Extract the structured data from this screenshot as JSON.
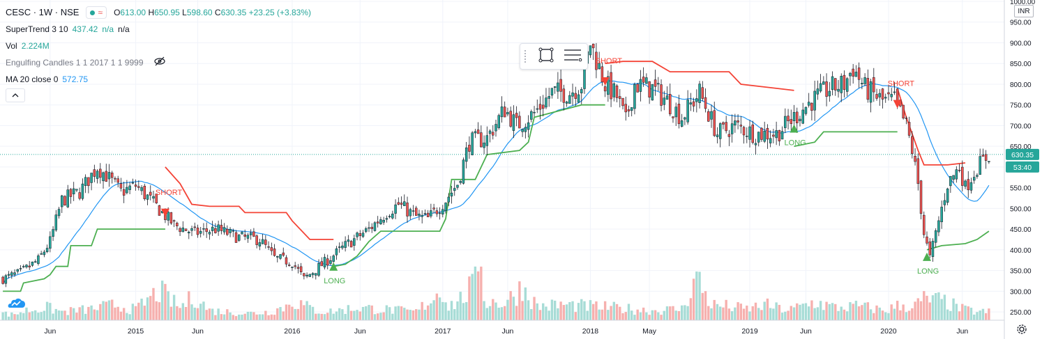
{
  "header": {
    "symbol": "CESC · 1W · NSE",
    "ohlc": {
      "open_label": "O",
      "open": "613.00",
      "high_label": "H",
      "high": "650.95",
      "low_label": "L",
      "low": "598.60",
      "close_label": "C",
      "close": "630.35",
      "change": "+23.25 (+3.83%)"
    }
  },
  "indicators": {
    "supertrend": {
      "label": "SuperTrend 3 10",
      "value": "437.42",
      "extra": "n/a",
      "extra2": "n/a"
    },
    "volume": {
      "label": "Vol",
      "value": "2.224M"
    },
    "engulfing": {
      "label": "Engulfing Candles 1 1 2017 1 1 9999",
      "icon": "eye-off-icon"
    },
    "ma": {
      "label": "MA 20 close 0",
      "value": "572.75"
    }
  },
  "toolbar": {
    "currency": "INR",
    "collapse_icon": "chevron-up-icon",
    "tools": [
      "rectangle-tool-icon",
      "settings-lines-icon"
    ]
  },
  "colors": {
    "up": "#26a69a",
    "down": "#ef5350",
    "ma": "#2196f3",
    "st_long": "#4caf50",
    "st_short": "#f44336",
    "last_price_bg": "#26a69a"
  },
  "chart_data": {
    "type": "candlestick",
    "title": "CESC · 1W · NSE",
    "ylim": [
      230,
      1000
    ],
    "y_ticks": [
      "1000.00",
      "950.00",
      "900.00",
      "850.00",
      "800.00",
      "750.00",
      "700.00",
      "650.00",
      "600.00",
      "550.00",
      "500.00",
      "450.00",
      "400.00",
      "350.00",
      "300.00",
      "250.00"
    ],
    "y_tick_values": [
      1000,
      950,
      900,
      850,
      800,
      750,
      700,
      650,
      600,
      550,
      500,
      450,
      400,
      350,
      300,
      250
    ],
    "x_ticks": [
      "Jun",
      "2015",
      "Jun",
      "2016",
      "Jun",
      "2017",
      "Jun",
      "2018",
      "May",
      "2019",
      "Jun",
      "2020",
      "Jun"
    ],
    "x_tick_weeks": [
      16,
      45,
      66,
      98,
      121,
      149,
      171,
      199,
      219,
      253,
      272,
      300,
      325
    ],
    "total_weeks": 335,
    "last_price_label": "630.35",
    "countdown_label": "53:40",
    "anchors": [
      [
        0,
        330
      ],
      [
        6,
        345
      ],
      [
        12,
        375
      ],
      [
        16,
        420
      ],
      [
        20,
        520
      ],
      [
        26,
        540
      ],
      [
        32,
        600
      ],
      [
        35,
        580
      ],
      [
        40,
        540
      ],
      [
        45,
        555
      ],
      [
        50,
        520
      ],
      [
        54,
        490
      ],
      [
        58,
        460
      ],
      [
        65,
        440
      ],
      [
        72,
        450
      ],
      [
        80,
        430
      ],
      [
        87,
        425
      ],
      [
        92,
        380
      ],
      [
        98,
        370
      ],
      [
        102,
        330
      ],
      [
        110,
        375
      ],
      [
        116,
        410
      ],
      [
        124,
        450
      ],
      [
        130,
        490
      ],
      [
        134,
        510
      ],
      [
        140,
        480
      ],
      [
        144,
        475
      ],
      [
        150,
        520
      ],
      [
        154,
        560
      ],
      [
        158,
        660
      ],
      [
        164,
        670
      ],
      [
        170,
        740
      ],
      [
        174,
        700
      ],
      [
        180,
        730
      ],
      [
        186,
        780
      ],
      [
        192,
        780
      ],
      [
        196,
        800
      ],
      [
        199,
        900
      ],
      [
        204,
        800
      ],
      [
        208,
        770
      ],
      [
        211,
        710
      ],
      [
        214,
        800
      ],
      [
        220,
        790
      ],
      [
        225,
        760
      ],
      [
        230,
        720
      ],
      [
        236,
        780
      ],
      [
        242,
        680
      ],
      [
        248,
        700
      ],
      [
        255,
        680
      ],
      [
        262,
        680
      ],
      [
        268,
        720
      ],
      [
        274,
        760
      ],
      [
        280,
        790
      ],
      [
        285,
        800
      ],
      [
        288,
        840
      ],
      [
        292,
        790
      ],
      [
        298,
        760
      ],
      [
        302,
        760
      ],
      [
        306,
        700
      ],
      [
        308,
        640
      ],
      [
        310,
        560
      ],
      [
        312,
        440
      ],
      [
        314,
        380
      ],
      [
        317,
        470
      ],
      [
        320,
        560
      ],
      [
        324,
        600
      ],
      [
        326,
        550
      ],
      [
        330,
        600
      ],
      [
        334,
        630
      ]
    ],
    "volume_weeks": [
      [
        0,
        10
      ],
      [
        3,
        8
      ],
      [
        8,
        14
      ],
      [
        15,
        18
      ],
      [
        20,
        12
      ],
      [
        30,
        16
      ],
      [
        38,
        22
      ],
      [
        45,
        15
      ],
      [
        53,
        42
      ],
      [
        60,
        18
      ],
      [
        65,
        35
      ],
      [
        70,
        14
      ],
      [
        76,
        12
      ],
      [
        84,
        10
      ],
      [
        90,
        12
      ],
      [
        96,
        20
      ],
      [
        98,
        28
      ],
      [
        106,
        14
      ],
      [
        110,
        12
      ],
      [
        120,
        18
      ],
      [
        131,
        15
      ],
      [
        140,
        12
      ],
      [
        149,
        45
      ],
      [
        151,
        20
      ],
      [
        155,
        30
      ],
      [
        160,
        52
      ],
      [
        162,
        116
      ],
      [
        163,
        28
      ],
      [
        170,
        24
      ],
      [
        176,
        48
      ],
      [
        181,
        20
      ],
      [
        190,
        22
      ],
      [
        198,
        20
      ],
      [
        206,
        18
      ],
      [
        220,
        14
      ],
      [
        230,
        16
      ],
      [
        235,
        62
      ],
      [
        240,
        22
      ],
      [
        245,
        20
      ],
      [
        252,
        16
      ],
      [
        258,
        22
      ],
      [
        266,
        14
      ],
      [
        275,
        26
      ],
      [
        282,
        18
      ],
      [
        290,
        20
      ],
      [
        299,
        14
      ],
      [
        304,
        22
      ],
      [
        308,
        18
      ],
      [
        312,
        30
      ],
      [
        318,
        28
      ],
      [
        325,
        16
      ],
      [
        330,
        12
      ]
    ],
    "short_signals": [
      {
        "week": 55,
        "label": "SHORT"
      },
      {
        "week": 204,
        "label": "SHORT"
      },
      {
        "week": 303,
        "label": "SHORT"
      }
    ],
    "long_signals": [
      {
        "week": 112,
        "label": "LONG"
      },
      {
        "week": 268,
        "label": "LONG"
      },
      {
        "week": 313,
        "label": "LONG"
      }
    ],
    "supertrend_segments": [
      {
        "dir": "long",
        "points": [
          [
            0,
            300
          ],
          [
            6,
            300
          ],
          [
            7,
            320
          ],
          [
            14,
            330
          ],
          [
            16,
            340
          ],
          [
            18,
            360
          ],
          [
            22,
            360
          ],
          [
            23,
            410
          ],
          [
            30,
            410
          ],
          [
            32,
            450
          ],
          [
            40,
            450
          ],
          [
            52,
            450
          ],
          [
            55,
            450
          ]
        ]
      },
      {
        "dir": "short",
        "points": [
          [
            55,
            600
          ],
          [
            60,
            560
          ],
          [
            64,
            510
          ],
          [
            70,
            505
          ],
          [
            80,
            505
          ],
          [
            82,
            490
          ],
          [
            96,
            490
          ],
          [
            98,
            470
          ],
          [
            104,
            425
          ],
          [
            112,
            425
          ]
        ]
      },
      {
        "dir": "long",
        "points": [
          [
            112,
            360
          ],
          [
            116,
            365
          ],
          [
            120,
            385
          ],
          [
            124,
            420
          ],
          [
            128,
            445
          ],
          [
            148,
            445
          ],
          [
            150,
            475
          ],
          [
            152,
            570
          ],
          [
            160,
            570
          ],
          [
            164,
            630
          ],
          [
            175,
            640
          ],
          [
            178,
            660
          ],
          [
            180,
            720
          ],
          [
            196,
            750
          ],
          [
            204,
            750
          ]
        ]
      },
      {
        "dir": "short",
        "points": [
          [
            204,
            850
          ],
          [
            210,
            855
          ],
          [
            220,
            855
          ],
          [
            226,
            830
          ],
          [
            246,
            830
          ],
          [
            250,
            800
          ],
          [
            262,
            790
          ],
          [
            268,
            785
          ]
        ]
      },
      {
        "dir": "long",
        "points": [
          [
            268,
            650
          ],
          [
            275,
            660
          ],
          [
            278,
            685
          ],
          [
            300,
            685
          ],
          [
            303,
            685
          ]
        ]
      },
      {
        "dir": "short",
        "points": [
          [
            303,
            790
          ],
          [
            306,
            720
          ],
          [
            310,
            640
          ],
          [
            312,
            605
          ],
          [
            320,
            605
          ],
          [
            326,
            610
          ]
        ]
      },
      {
        "dir": "long",
        "points": [
          [
            313,
            400
          ],
          [
            318,
            410
          ],
          [
            326,
            415
          ],
          [
            330,
            425
          ],
          [
            334,
            445
          ]
        ]
      }
    ]
  }
}
